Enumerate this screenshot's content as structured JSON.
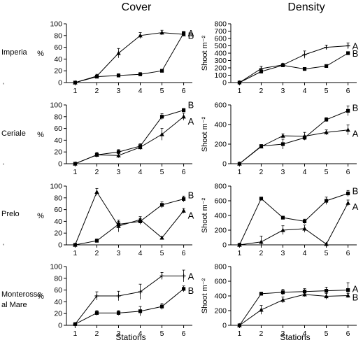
{
  "columns": [
    "Cover",
    "Density"
  ],
  "rows": [
    {
      "site": [
        "Imperia"
      ]
    },
    {
      "site": [
        "Ceriale"
      ]
    },
    {
      "site": [
        "Prelo"
      ]
    },
    {
      "site": [
        "Monterosso",
        "al Mare"
      ]
    }
  ],
  "stray_marks": [
    "°",
    "°",
    "°"
  ],
  "axes": {
    "cover_ylabel": "%",
    "density_ylabel": "Shoot m⁻²",
    "xlabel": "Stations"
  },
  "chart_data": [
    {
      "type": "line",
      "panel": "cover-imperia",
      "x": [
        1,
        2,
        3,
        4,
        5,
        6
      ],
      "ylim": [
        0,
        100
      ],
      "yticks": [
        0,
        20,
        40,
        60,
        80,
        100
      ],
      "series": [
        {
          "name": "A",
          "marker": "triangle",
          "values": [
            0,
            11,
            50,
            80,
            85,
            82
          ],
          "errors": [
            0,
            3,
            8,
            5,
            4,
            3
          ]
        },
        {
          "name": "B",
          "marker": "square",
          "values": [
            0,
            10,
            12,
            14,
            20,
            84
          ],
          "errors": [
            0,
            2,
            3,
            3,
            2,
            3
          ]
        }
      ]
    },
    {
      "type": "line",
      "panel": "density-imperia",
      "x": [
        1,
        2,
        3,
        4,
        5,
        6
      ],
      "ylim": [
        0,
        800
      ],
      "yticks": [
        0,
        100,
        200,
        300,
        400,
        500,
        600,
        700,
        800
      ],
      "series": [
        {
          "name": "A",
          "marker": "cross",
          "values": [
            0,
            190,
            240,
            380,
            480,
            500
          ],
          "errors": [
            0,
            30,
            20,
            50,
            30,
            40
          ]
        },
        {
          "name": "B",
          "marker": "square",
          "values": [
            0,
            150,
            235,
            185,
            225,
            400
          ],
          "errors": [
            0,
            25,
            20,
            15,
            15,
            20
          ]
        }
      ]
    },
    {
      "type": "line",
      "panel": "cover-ceriale",
      "x": [
        1,
        2,
        3,
        4,
        5,
        6
      ],
      "ylim": [
        0,
        100
      ],
      "yticks": [
        0,
        20,
        40,
        60,
        80,
        100
      ],
      "series": [
        {
          "name": "B",
          "marker": "square",
          "values": [
            0,
            15,
            20,
            30,
            80,
            91
          ],
          "errors": [
            0,
            4,
            4,
            4,
            5,
            3
          ]
        },
        {
          "name": "A",
          "marker": "triangle",
          "values": [
            0,
            15,
            14,
            28,
            50,
            80
          ],
          "errors": [
            0,
            3,
            4,
            4,
            10,
            6
          ]
        }
      ]
    },
    {
      "type": "line",
      "panel": "density-ceriale",
      "x": [
        1,
        2,
        3,
        4,
        5,
        6
      ],
      "ylim": [
        0,
        600
      ],
      "yticks": [
        0,
        200,
        400,
        600
      ],
      "series": [
        {
          "name": "B",
          "marker": "square",
          "values": [
            0,
            180,
            200,
            265,
            450,
            540
          ],
          "errors": [
            0,
            15,
            50,
            20,
            20,
            50
          ]
        },
        {
          "name": "A",
          "marker": "triangle",
          "values": [
            0,
            175,
            285,
            280,
            320,
            345
          ],
          "errors": [
            0,
            15,
            20,
            40,
            25,
            50
          ]
        }
      ]
    },
    {
      "type": "line",
      "panel": "cover-prelo",
      "x": [
        1,
        2,
        3,
        4,
        5,
        6
      ],
      "ylim": [
        0,
        100
      ],
      "yticks": [
        0,
        20,
        40,
        60,
        80,
        100
      ],
      "series": [
        {
          "name": "B",
          "marker": "square",
          "values": [
            0,
            7,
            35,
            40,
            68,
            78
          ],
          "errors": [
            0,
            3,
            5,
            5,
            5,
            5
          ]
        },
        {
          "name": "A",
          "marker": "triangle",
          "values": [
            0,
            90,
            32,
            43,
            12,
            58
          ],
          "errors": [
            0,
            6,
            10,
            5,
            2,
            4
          ]
        }
      ]
    },
    {
      "type": "line",
      "panel": "density-prelo",
      "x": [
        1,
        2,
        3,
        4,
        5,
        6
      ],
      "ylim": [
        0,
        800
      ],
      "yticks": [
        0,
        200,
        400,
        600,
        800
      ],
      "series": [
        {
          "name": "B",
          "marker": "square",
          "values": [
            0,
            630,
            370,
            320,
            600,
            700
          ],
          "errors": [
            0,
            15,
            20,
            30,
            50,
            40
          ]
        },
        {
          "name": "A",
          "marker": "triangle",
          "values": [
            0,
            40,
            200,
            220,
            10,
            570
          ],
          "errors": [
            0,
            80,
            60,
            50,
            10,
            40
          ]
        }
      ]
    },
    {
      "type": "line",
      "panel": "cover-monterosso",
      "x": [
        1,
        2,
        3,
        4,
        5,
        6
      ],
      "ylim": [
        0,
        100
      ],
      "yticks": [
        0,
        20,
        40,
        60,
        80,
        100
      ],
      "series": [
        {
          "name": "A",
          "marker": "cross",
          "values": [
            2,
            50,
            50,
            57,
            84,
            84
          ],
          "errors": [
            0,
            7,
            8,
            13,
            6,
            10
          ]
        },
        {
          "name": "B",
          "marker": "square",
          "values": [
            2,
            21,
            21,
            24,
            32,
            62
          ],
          "errors": [
            0,
            4,
            4,
            8,
            5,
            5
          ]
        }
      ]
    },
    {
      "type": "line",
      "panel": "density-monterosso",
      "x": [
        1,
        2,
        3,
        4,
        5,
        6
      ],
      "ylim": [
        0,
        800
      ],
      "yticks": [
        0,
        200,
        400,
        600,
        800
      ],
      "series": [
        {
          "name": "A",
          "marker": "square",
          "values": [
            0,
            430,
            450,
            460,
            470,
            480
          ],
          "errors": [
            0,
            20,
            40,
            40,
            50,
            100
          ]
        },
        {
          "name": "B",
          "marker": "triangle",
          "values": [
            0,
            210,
            345,
            420,
            395,
            405
          ],
          "errors": [
            0,
            60,
            40,
            30,
            40,
            30
          ]
        }
      ]
    }
  ]
}
